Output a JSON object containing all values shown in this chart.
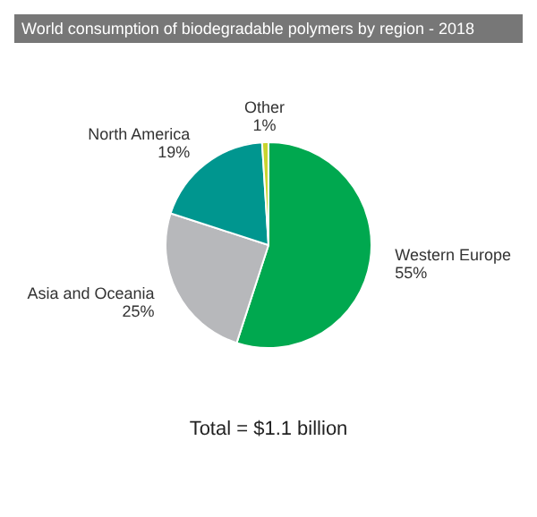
{
  "chart_data": {
    "type": "pie",
    "title": "World consumption of biodegradable polymers by region - 2018",
    "categories": [
      "Western Europe",
      "Asia and Oceania",
      "North America",
      "Other"
    ],
    "values": [
      55,
      25,
      19,
      1
    ],
    "value_labels": [
      "55%",
      "25%",
      "19%",
      "1%"
    ],
    "colors": [
      "#00a84f",
      "#b7b8bb",
      "#00968f",
      "#c8d42e"
    ],
    "legend": false,
    "annotations": [
      "Total = $1.1 billion"
    ]
  }
}
